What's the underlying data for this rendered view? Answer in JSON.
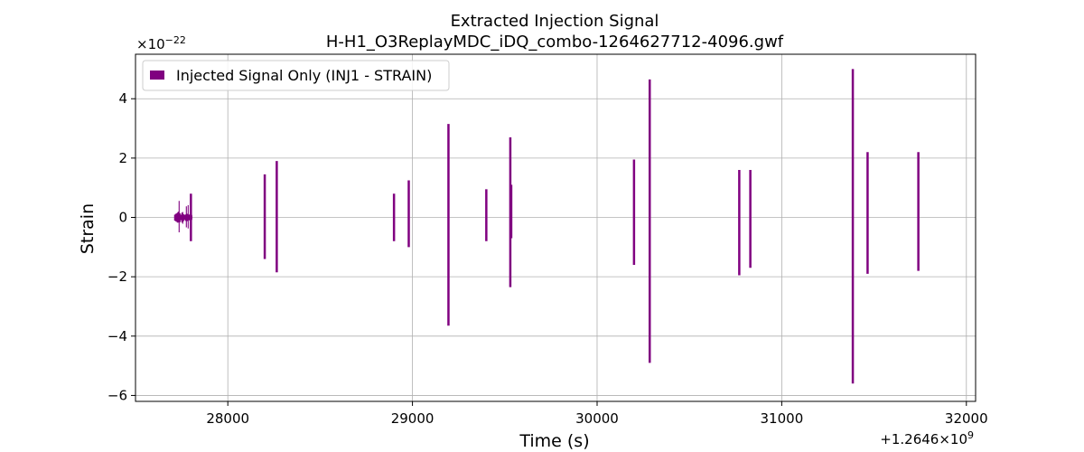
{
  "chart_data": {
    "type": "line",
    "title": "Extracted Injection Signal",
    "subtitle": "H-H1_O3ReplayMDC_iDQ_combo-1264627712-4096.gwf",
    "xlabel": "Time (s)",
    "ylabel": "Strain",
    "x_offset_label": "+1.2646×10",
    "x_offset_exponent": "9",
    "y_scale_label": "×10",
    "y_scale_exponent": "−22",
    "xlim": [
      27500,
      32050
    ],
    "ylim": [
      -6.2,
      5.5
    ],
    "x_ticks": [
      {
        "value": 28000,
        "label": "28000"
      },
      {
        "value": 29000,
        "label": "29000"
      },
      {
        "value": 30000,
        "label": "30000"
      },
      {
        "value": 31000,
        "label": "31000"
      },
      {
        "value": 32000,
        "label": "32000"
      }
    ],
    "y_ticks": [
      {
        "value": -6,
        "label": "−6"
      },
      {
        "value": -4,
        "label": "−4"
      },
      {
        "value": -2,
        "label": "−2"
      },
      {
        "value": 0,
        "label": "0"
      },
      {
        "value": 2,
        "label": "2"
      },
      {
        "value": 4,
        "label": "4"
      }
    ],
    "grid": true,
    "legend_position": "top-left",
    "series": [
      {
        "name": "Injected Signal Only (INJ1 - STRAIN)",
        "color": "#800080",
        "x_range": [
          27712,
          27808
        ],
        "baseline_envelope": 0.15,
        "spikes": [
          {
            "x": 27800,
            "max": 0.8,
            "min": -0.8
          },
          {
            "x": 28200,
            "max": 1.45,
            "min": -1.4
          },
          {
            "x": 28265,
            "max": 1.9,
            "min": -1.85
          },
          {
            "x": 28900,
            "max": 0.8,
            "min": -0.8
          },
          {
            "x": 28980,
            "max": 1.25,
            "min": -1.0
          },
          {
            "x": 29195,
            "max": 3.15,
            "min": -3.65
          },
          {
            "x": 29400,
            "max": 0.95,
            "min": -0.8
          },
          {
            "x": 29530,
            "max": 2.7,
            "min": -2.35
          },
          {
            "x": 29535,
            "max": 1.1,
            "min": -0.7
          },
          {
            "x": 30200,
            "max": 1.95,
            "min": -1.6
          },
          {
            "x": 30285,
            "max": 4.65,
            "min": -4.9
          },
          {
            "x": 30770,
            "max": 1.6,
            "min": -1.95
          },
          {
            "x": 30830,
            "max": 1.6,
            "min": -1.7
          },
          {
            "x": 31385,
            "max": 5.0,
            "min": -5.6
          },
          {
            "x": 31465,
            "max": 2.2,
            "min": -1.9
          },
          {
            "x": 31740,
            "max": 2.2,
            "min": -1.8
          }
        ]
      }
    ]
  }
}
